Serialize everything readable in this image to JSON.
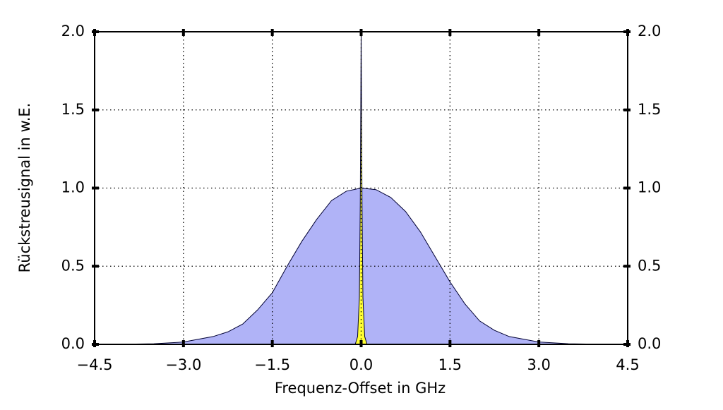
{
  "chart_data": {
    "type": "area",
    "xlabel": "Frequenz-Offset in GHz",
    "ylabel": "Rückstreusignal in w.E.",
    "xlim": [
      -4.5,
      4.5
    ],
    "ylim": [
      0,
      2.0
    ],
    "xticks": [
      {
        "value": -4.5,
        "label": "−4.5"
      },
      {
        "value": -3.0,
        "label": "−3.0"
      },
      {
        "value": -1.5,
        "label": "−1.5"
      },
      {
        "value": 0,
        "label": "0.0"
      },
      1.5,
      {
        "value": 3.0,
        "label": "3.0"
      },
      4.5
    ],
    "yticks": [
      {
        "value": 0,
        "label": "0.0"
      },
      0.5,
      {
        "value": 1.0,
        "label": "1.0"
      },
      1.5,
      {
        "value": 2.0,
        "label": "2.0"
      }
    ],
    "grid": true,
    "series": [
      {
        "color": "#b0b3f7",
        "x": [
          -4.5,
          -4,
          -3.5,
          -3,
          -2.5,
          -2.25,
          -2,
          -1.75,
          -1.5,
          -1.25,
          -1,
          -0.75,
          -0.5,
          -0.25,
          0,
          0.25,
          0.5,
          0.75,
          1,
          1.25,
          1.5,
          1.75,
          2,
          2.25,
          2.5,
          3,
          3.5,
          4,
          4.5
        ],
        "values": [
          0,
          0.001,
          0.004,
          0.015,
          0.05,
          0.08,
          0.13,
          0.22,
          0.33,
          0.5,
          0.66,
          0.8,
          0.92,
          0.98,
          1.0,
          0.99,
          0.94,
          0.85,
          0.72,
          0.56,
          0.4,
          0.26,
          0.15,
          0.09,
          0.05,
          0.015,
          0.004,
          0.001,
          0
        ]
      },
      {
        "color": "#ffff33",
        "x": [
          -0.1,
          -0.06,
          -0.03,
          -0.015,
          0,
          0.015,
          0.03,
          0.06,
          0.1
        ],
        "values": [
          0,
          0.05,
          0.3,
          0.9,
          2.0,
          0.9,
          0.3,
          0.05,
          0
        ]
      }
    ]
  }
}
